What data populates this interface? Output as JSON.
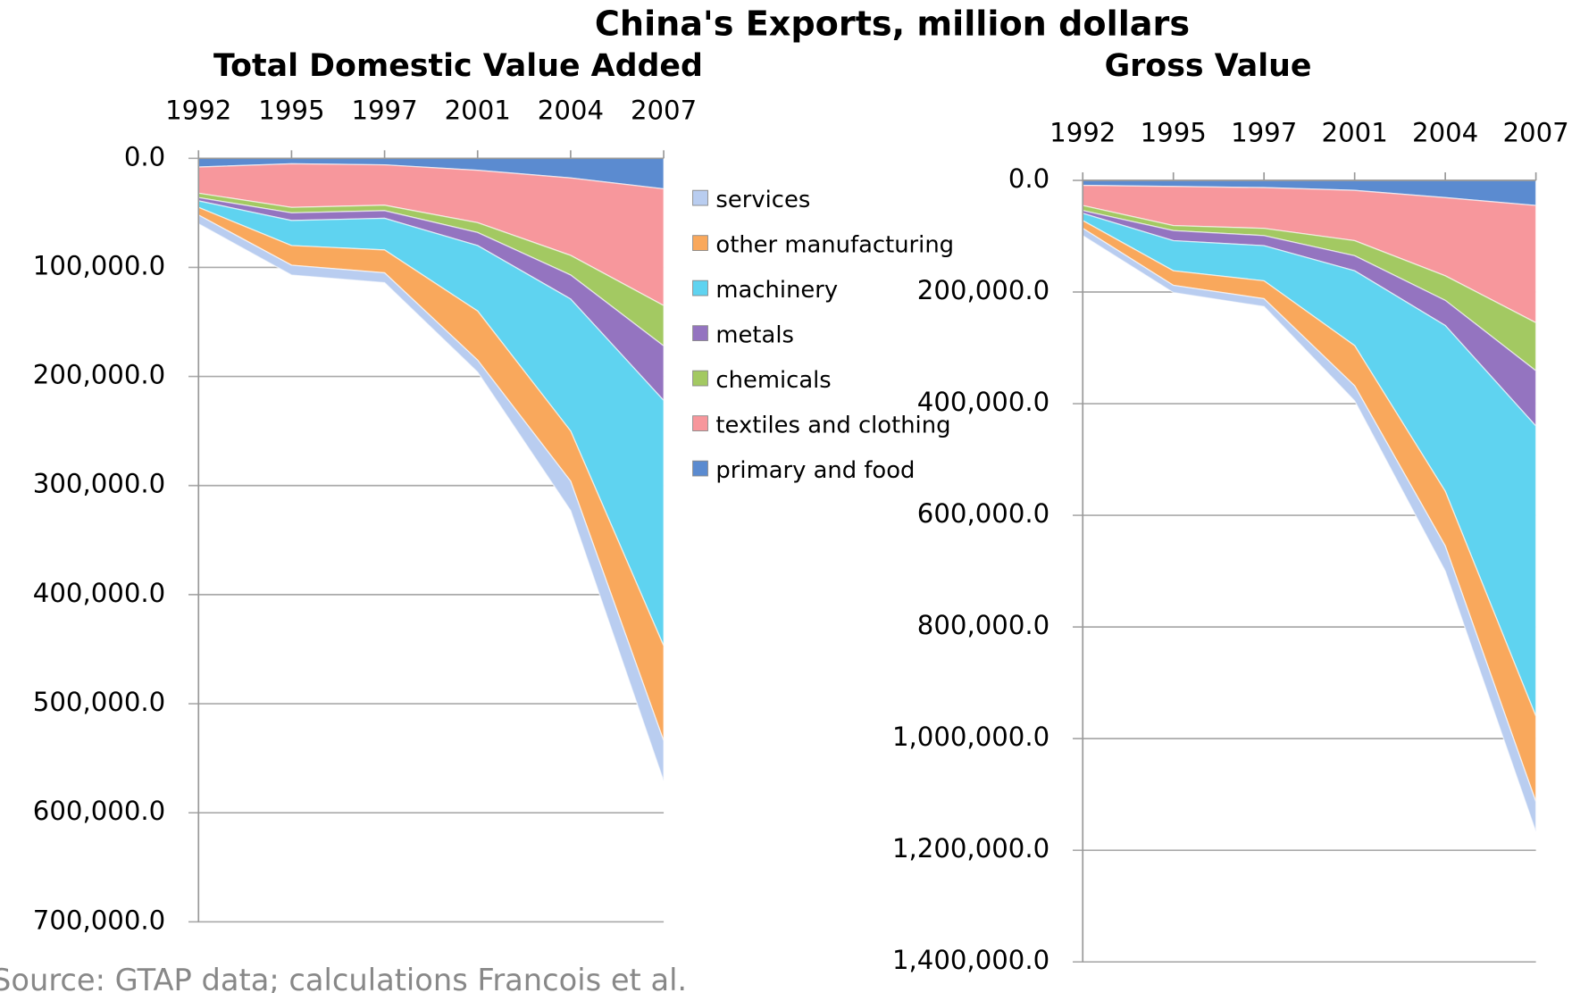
{
  "title": "China's Exports, million dollars",
  "source": "Source: GTAP data; calculations Francois et al.",
  "chart_data": [
    {
      "type": "stacked_area",
      "title": "Total Domestic Value Added",
      "categories": [
        "1992",
        "1995",
        "1997",
        "2001",
        "2004",
        "2007"
      ],
      "inverted_y": true,
      "ylim": [
        0,
        700000
      ],
      "yticks": [
        {
          "value": 0,
          "label": "0.0"
        },
        {
          "value": 100000,
          "label": "100,000.0"
        },
        {
          "value": 200000,
          "label": "200,000.0"
        },
        {
          "value": 300000,
          "label": "300,000.0"
        },
        {
          "value": 400000,
          "label": "400,000.0"
        },
        {
          "value": 500000,
          "label": "500,000.0"
        },
        {
          "value": 600000,
          "label": "600,000.0"
        },
        {
          "value": 700000,
          "label": "700,000.0"
        }
      ],
      "grid": true,
      "series": [
        {
          "name": "primary and food",
          "color": "#5b8bd0",
          "values": [
            8000,
            5000,
            6000,
            11000,
            18000,
            28000
          ]
        },
        {
          "name": "textiles and clothing",
          "color": "#f7979c",
          "values": [
            24000,
            40000,
            37000,
            48000,
            71000,
            107000
          ]
        },
        {
          "name": "chemicals",
          "color": "#a3c962",
          "values": [
            4000,
            5000,
            5000,
            9000,
            18000,
            37000
          ]
        },
        {
          "name": "metals",
          "color": "#9474c0",
          "values": [
            3000,
            7000,
            7000,
            12000,
            22000,
            50000
          ]
        },
        {
          "name": "machinery",
          "color": "#5fd3f0",
          "values": [
            6000,
            23000,
            29000,
            60000,
            121000,
            225000
          ]
        },
        {
          "name": "other manufacturing",
          "color": "#f9a85c",
          "values": [
            7000,
            18000,
            21000,
            45000,
            46000,
            87000
          ]
        },
        {
          "name": "services",
          "color": "#b9cdf0",
          "values": [
            8000,
            9000,
            9000,
            11000,
            27000,
            37000
          ]
        }
      ]
    },
    {
      "type": "stacked_area",
      "title": "Gross Value",
      "categories": [
        "1992",
        "1995",
        "1997",
        "2001",
        "2004",
        "2007"
      ],
      "inverted_y": true,
      "ylim": [
        0,
        1400000
      ],
      "yticks": [
        {
          "value": 0,
          "label": "0.0"
        },
        {
          "value": 200000,
          "label": "200,000.0"
        },
        {
          "value": 400000,
          "label": "400,000.0"
        },
        {
          "value": 600000,
          "label": "600,000.0"
        },
        {
          "value": 800000,
          "label": "800,000.0"
        },
        {
          "value": 1000000,
          "label": "1,000,000.0"
        },
        {
          "value": 1200000,
          "label": "1,200,000.0"
        },
        {
          "value": 1400000,
          "label": "1,400,000.0"
        }
      ],
      "grid": true,
      "series": [
        {
          "name": "primary and food",
          "color": "#5b8bd0",
          "values": [
            9000,
            11000,
            13000,
            18000,
            31000,
            45000
          ]
        },
        {
          "name": "textiles and clothing",
          "color": "#f7979c",
          "values": [
            36000,
            70000,
            73000,
            90000,
            140000,
            210000
          ]
        },
        {
          "name": "chemicals",
          "color": "#a3c962",
          "values": [
            9000,
            9000,
            13000,
            27000,
            44000,
            86000
          ]
        },
        {
          "name": "metals",
          "color": "#9474c0",
          "values": [
            5000,
            18000,
            18000,
            27000,
            45000,
            99000
          ]
        },
        {
          "name": "machinery",
          "color": "#5fd3f0",
          "values": [
            13000,
            54000,
            63000,
            134000,
            297000,
            520000
          ]
        },
        {
          "name": "other manufacturing",
          "color": "#f9a85c",
          "values": [
            14000,
            26000,
            32000,
            72000,
            98000,
            153000
          ]
        },
        {
          "name": "services",
          "color": "#b9cdf0",
          "values": [
            13000,
            13000,
            14000,
            27000,
            45000,
            54000
          ]
        }
      ]
    }
  ]
}
